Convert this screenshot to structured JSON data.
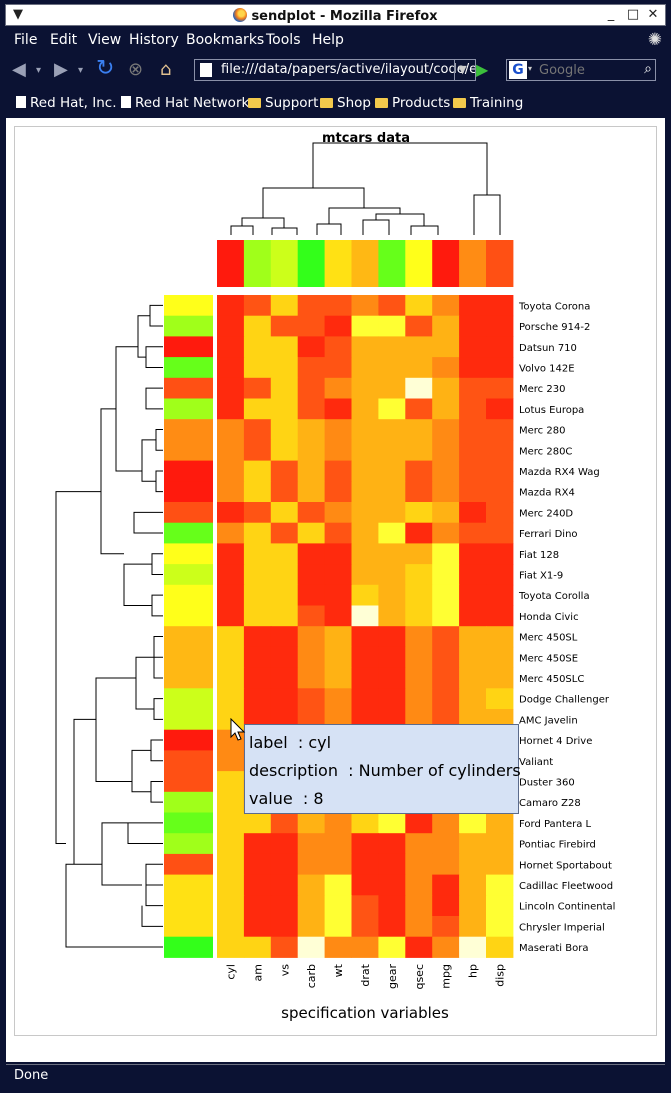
{
  "window": {
    "title": "sendplot - Mozilla Firefox",
    "minimize": "_",
    "maximize": "□",
    "close": "✕",
    "menu_arrow": "▼"
  },
  "menubar": {
    "file": "File",
    "edit": "Edit",
    "view": "View",
    "history": "History",
    "bookmarks": "Bookmarks",
    "tools": "Tools",
    "help": "Help"
  },
  "navbar": {
    "url": "file:///data/papers/active/ilayout/code/e:",
    "search_placeholder": "Google",
    "search_engine": "G"
  },
  "bookmarks": [
    "Red Hat, Inc.",
    "Red Hat Network",
    "Support",
    "Shop",
    "Products",
    "Training"
  ],
  "status": "Done",
  "tooltip": {
    "label_key": "label",
    "label_value": "cyl",
    "description_key": "description",
    "description_value": "Number of cylinders",
    "value_key": "value",
    "value_value": "8"
  },
  "chart_data": {
    "type": "heatmap",
    "title": "mtcars data",
    "xlabel": "specification variables",
    "columns": [
      "cyl",
      "am",
      "vs",
      "carb",
      "wt",
      "drat",
      "gear",
      "qsec",
      "mpg",
      "hp",
      "disp"
    ],
    "rows": [
      "Toyota Corona",
      "Porsche 914-2",
      "Datsun 710",
      "Volvo 142E",
      "Merc 230",
      "Lotus Europa",
      "Merc 280",
      "Merc 280C",
      "Mazda RX4 Wag",
      "Mazda RX4",
      "Merc 240D",
      "Ferrari Dino",
      "Fiat 128",
      "Fiat X1-9",
      "Toyota Corolla",
      "Honda Civic",
      "Merc 450SL",
      "Merc 450SE",
      "Merc 450SLC",
      "Dodge Challenger",
      "AMC Javelin",
      "Hornet 4 Drive",
      "Valiant",
      "Duster 360",
      "Camaro Z28",
      "Ford Pantera L",
      "Pontiac Firebird",
      "Hornet Sportabout",
      "Cadillac Fleetwood",
      "Lincoln Continental",
      "Chrysler Imperial",
      "Maserati Bora"
    ],
    "color_scale": [
      "#ff2a0d",
      "#ff5414",
      "#ff8a14",
      "#ffb214",
      "#ffd414",
      "#ffff33",
      "#ffffd6"
    ],
    "side_color_scale": [
      "#ff1a0d",
      "#ff5014",
      "#ff8c14",
      "#ffb814",
      "#ffe114",
      "#ffff1a",
      "#ccff1a",
      "#a0ff1a",
      "#66ff1a",
      "#33ff1a"
    ],
    "column_colors": [
      0,
      7,
      6,
      9,
      4,
      3,
      8,
      5,
      0,
      2,
      1
    ],
    "row_colors": [
      5,
      7,
      0,
      8,
      1,
      7,
      2,
      2,
      0,
      0,
      1,
      8,
      5,
      6,
      5,
      5,
      3,
      3,
      3,
      6,
      6,
      0,
      1,
      1,
      7,
      8,
      7,
      1,
      4,
      4,
      4,
      9
    ],
    "values": [
      [
        0,
        1,
        4,
        1,
        1,
        2,
        1,
        4,
        2,
        0,
        0
      ],
      [
        0,
        4,
        1,
        1,
        0,
        5,
        5,
        1,
        3,
        0,
        0
      ],
      [
        0,
        4,
        4,
        0,
        1,
        3,
        3,
        3,
        3,
        0,
        0
      ],
      [
        0,
        4,
        4,
        1,
        1,
        3,
        3,
        3,
        2,
        0,
        0
      ],
      [
        0,
        1,
        4,
        1,
        2,
        3,
        3,
        6,
        3,
        1,
        1
      ],
      [
        0,
        4,
        4,
        1,
        0,
        3,
        5,
        1,
        3,
        1,
        0
      ],
      [
        2,
        1,
        4,
        3,
        2,
        3,
        3,
        3,
        2,
        1,
        1
      ],
      [
        2,
        1,
        4,
        3,
        2,
        3,
        3,
        3,
        2,
        1,
        1
      ],
      [
        2,
        4,
        1,
        3,
        1,
        3,
        3,
        1,
        2,
        1,
        1
      ],
      [
        2,
        4,
        1,
        3,
        1,
        3,
        3,
        1,
        2,
        1,
        1
      ],
      [
        0,
        1,
        4,
        1,
        2,
        3,
        3,
        4,
        3,
        0,
        1
      ],
      [
        2,
        4,
        1,
        4,
        1,
        3,
        5,
        0,
        2,
        1,
        1
      ],
      [
        0,
        4,
        4,
        0,
        0,
        3,
        3,
        3,
        5,
        0,
        0
      ],
      [
        0,
        4,
        4,
        0,
        0,
        3,
        3,
        4,
        5,
        0,
        0
      ],
      [
        0,
        4,
        4,
        0,
        0,
        4,
        3,
        4,
        5,
        0,
        0
      ],
      [
        0,
        4,
        4,
        1,
        0,
        6,
        3,
        4,
        5,
        0,
        0
      ],
      [
        4,
        0,
        0,
        2,
        3,
        0,
        0,
        2,
        1,
        3,
        3
      ],
      [
        4,
        0,
        0,
        2,
        3,
        0,
        0,
        2,
        1,
        3,
        3
      ],
      [
        4,
        0,
        0,
        2,
        3,
        0,
        0,
        2,
        1,
        3,
        3
      ],
      [
        4,
        0,
        0,
        1,
        2,
        0,
        0,
        2,
        1,
        3,
        4
      ],
      [
        4,
        0,
        0,
        1,
        2,
        0,
        0,
        2,
        1,
        3,
        3
      ],
      [
        2,
        0,
        0,
        3,
        2,
        0,
        0,
        2,
        2,
        2,
        2
      ],
      [
        2,
        0,
        0,
        3,
        2,
        0,
        0,
        2,
        2,
        2,
        2
      ],
      [
        4,
        0,
        0,
        1,
        1,
        0,
        0,
        2,
        1,
        3,
        3
      ],
      [
        4,
        0,
        0,
        1,
        1,
        0,
        0,
        2,
        1,
        3,
        3
      ],
      [
        4,
        4,
        1,
        3,
        2,
        4,
        5,
        0,
        2,
        5,
        3
      ],
      [
        4,
        0,
        0,
        2,
        2,
        0,
        0,
        2,
        2,
        3,
        3
      ],
      [
        4,
        0,
        0,
        2,
        2,
        0,
        0,
        2,
        2,
        3,
        3
      ],
      [
        4,
        0,
        0,
        3,
        5,
        0,
        0,
        2,
        0,
        3,
        5
      ],
      [
        4,
        0,
        0,
        3,
        5,
        1,
        0,
        2,
        0,
        3,
        5
      ],
      [
        4,
        0,
        0,
        3,
        5,
        1,
        0,
        2,
        1,
        3,
        5
      ],
      [
        4,
        4,
        1,
        6,
        2,
        2,
        5,
        0,
        2,
        6,
        4
      ]
    ]
  }
}
